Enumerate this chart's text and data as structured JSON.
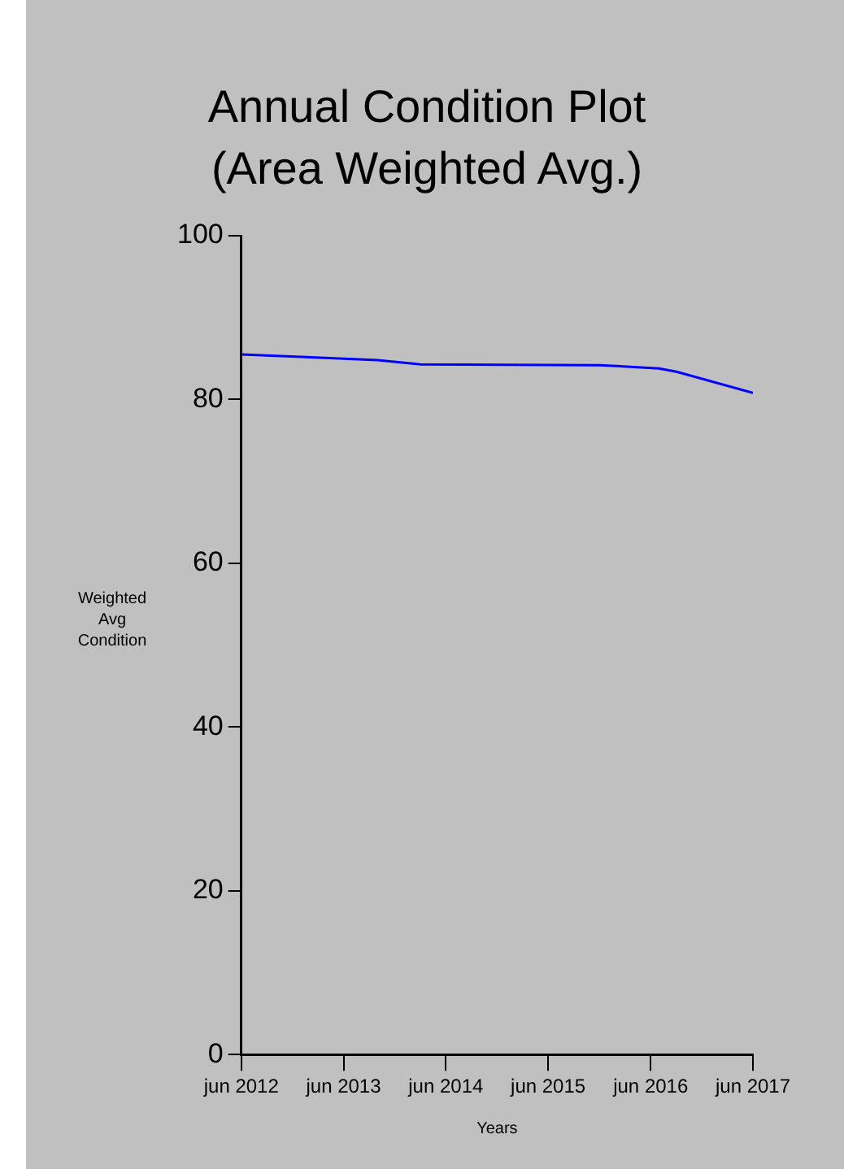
{
  "chart_data": {
    "type": "line",
    "title": "Annual Condition Plot\n(Area Weighted Avg.)",
    "xlabel": "Years",
    "ylabel": "Weighted Avg Condition",
    "x": [
      "2012-06",
      "2013-01",
      "2013-10",
      "2014-03",
      "2015-12",
      "2016-07",
      "2016-09",
      "2017-06"
    ],
    "series": [
      {
        "color": "#0000ff",
        "values": [
          85.5,
          85.2,
          84.8,
          84.3,
          84.2,
          83.8,
          83.4,
          80.8
        ]
      }
    ],
    "xlim": [
      "2012-06",
      "2017-06"
    ],
    "xticks": [
      {
        "value": "2012-06",
        "label": "jun 2012"
      },
      {
        "value": "2013-06",
        "label": "jun 2013"
      },
      {
        "value": "2014-06",
        "label": "jun 2014"
      },
      {
        "value": "2015-06",
        "label": "jun 2015"
      },
      {
        "value": "2016-06",
        "label": "jun 2016"
      },
      {
        "value": "2017-06",
        "label": "jun 2017"
      }
    ],
    "ylim": [
      0,
      100
    ],
    "yticks": [
      0,
      20,
      40,
      60,
      80,
      100
    ],
    "grid": false,
    "legend": false,
    "marker": "none",
    "line_style": "solid"
  }
}
